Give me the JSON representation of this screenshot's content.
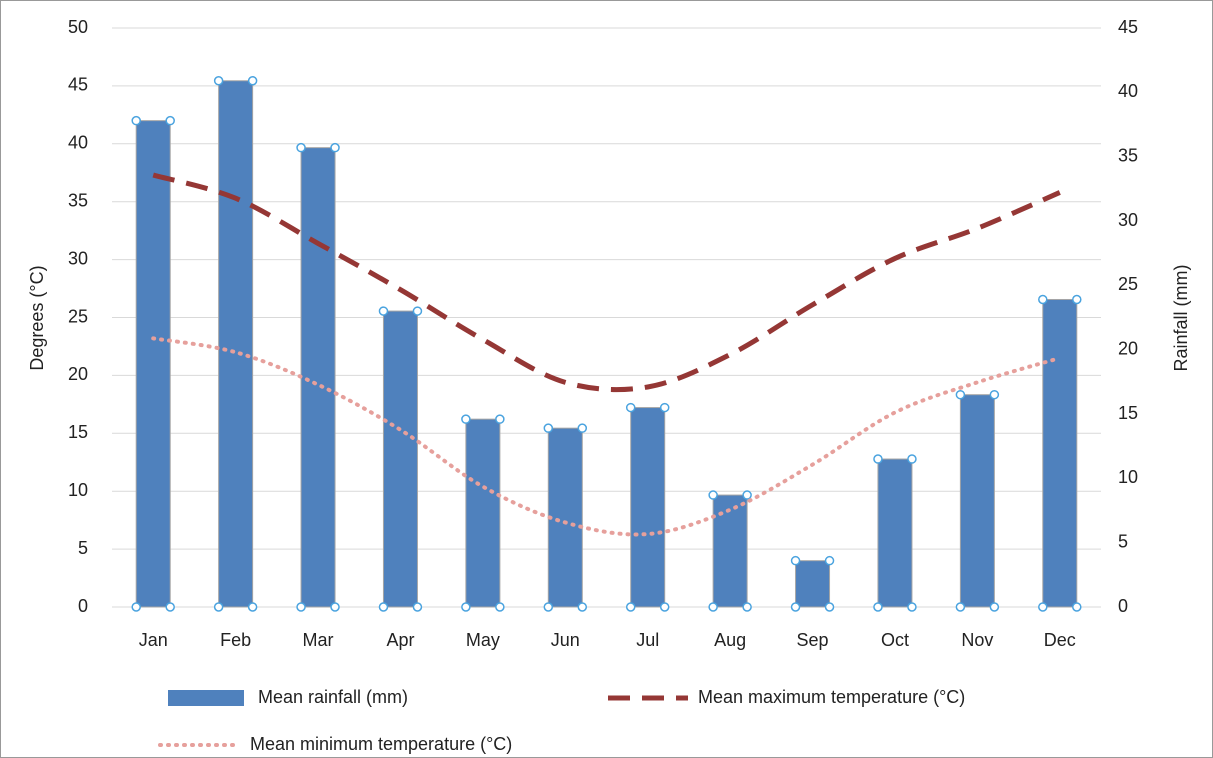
{
  "chart_data": {
    "type": "bar-line",
    "categories": [
      "Jan",
      "Feb",
      "Mar",
      "Apr",
      "May",
      "Jun",
      "Jul",
      "Aug",
      "Sep",
      "Oct",
      "Nov",
      "Dec"
    ],
    "series": [
      {
        "name": "Mean rainfall (mm)",
        "type": "bar",
        "axis": "y2",
        "color": "#4f81bd",
        "values": [
          37.8,
          40.9,
          35.7,
          23.0,
          14.6,
          13.9,
          15.5,
          8.7,
          3.6,
          11.5,
          16.5,
          23.9
        ]
      },
      {
        "name": "Mean maximum temperature (°C)",
        "type": "line",
        "style": "dashed",
        "color": "#953735",
        "values": [
          37.3,
          35.3,
          31.4,
          27.4,
          23.1,
          19.4,
          19.0,
          21.8,
          26.1,
          30.1,
          32.7,
          35.8
        ]
      },
      {
        "name": "Mean minimum temperature (°C)",
        "type": "line",
        "style": "dotted",
        "color": "#e6a09c",
        "values": [
          23.2,
          22.0,
          19.2,
          15.3,
          10.4,
          7.3,
          6.3,
          8.4,
          12.3,
          16.8,
          19.4,
          21.5
        ]
      }
    ],
    "ylabel": "Degrees (°C)",
    "y2label": "Rainfall (mm)",
    "ylim": [
      0,
      50
    ],
    "yticks": [
      0,
      5,
      10,
      15,
      20,
      25,
      30,
      35,
      40,
      45,
      50
    ],
    "y2lim": [
      0,
      45
    ],
    "y2ticks": [
      0,
      5,
      10,
      15,
      20,
      25,
      30,
      35,
      40,
      45
    ],
    "grid": true,
    "legend": "bottom"
  }
}
